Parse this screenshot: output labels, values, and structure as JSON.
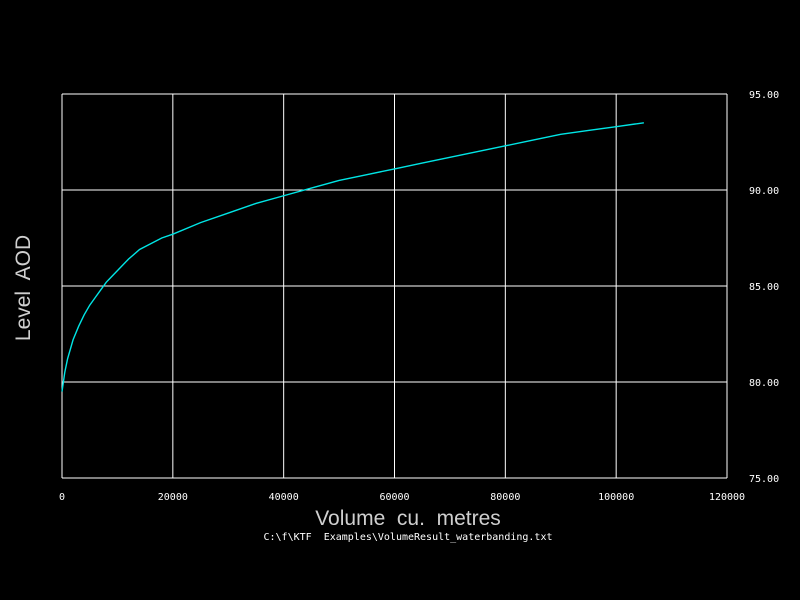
{
  "chart_data": {
    "type": "line",
    "title": "",
    "xlabel": "Volume  cu.  metres",
    "ylabel": "Level  AOD",
    "source_file": "C:\\f\\KTF  Examples\\VolumeResult_waterbanding.txt",
    "xlim": [
      0,
      120000
    ],
    "ylim": [
      75,
      95
    ],
    "x_ticks": [
      0,
      20000,
      40000,
      60000,
      80000,
      100000,
      120000
    ],
    "x_tick_labels": [
      "0",
      "20000",
      "40000",
      "60000",
      "80000",
      "100000",
      "120000"
    ],
    "y_ticks": [
      75,
      80,
      85,
      90,
      95
    ],
    "y_tick_labels": [
      "75.00",
      "80.00",
      "85.00",
      "90.00",
      "95.00"
    ],
    "y_axis_side": "right",
    "grid": true,
    "colors": {
      "background": "#000000",
      "grid": "#ffffff",
      "series": "#00e5e5",
      "text": "#ffffff"
    },
    "series": [
      {
        "x": [
          0,
          500,
          1000,
          2000,
          3000,
          4000,
          5000,
          6000,
          7000,
          8000,
          9000,
          10000,
          12000,
          14000,
          16000,
          18000,
          20000,
          25000,
          30000,
          35000,
          40000,
          45000,
          50000,
          55000,
          60000,
          65000,
          70000,
          75000,
          80000,
          85000,
          90000,
          95000,
          100000,
          105000
        ],
        "y": [
          79.5,
          80.5,
          81.2,
          82.2,
          82.9,
          83.5,
          84.0,
          84.4,
          84.8,
          85.2,
          85.5,
          85.8,
          86.4,
          86.9,
          87.2,
          87.5,
          87.7,
          88.3,
          88.8,
          89.3,
          89.7,
          90.1,
          90.5,
          90.8,
          91.1,
          91.4,
          91.7,
          92.0,
          92.3,
          92.6,
          92.9,
          93.1,
          93.3,
          93.5
        ]
      }
    ]
  }
}
